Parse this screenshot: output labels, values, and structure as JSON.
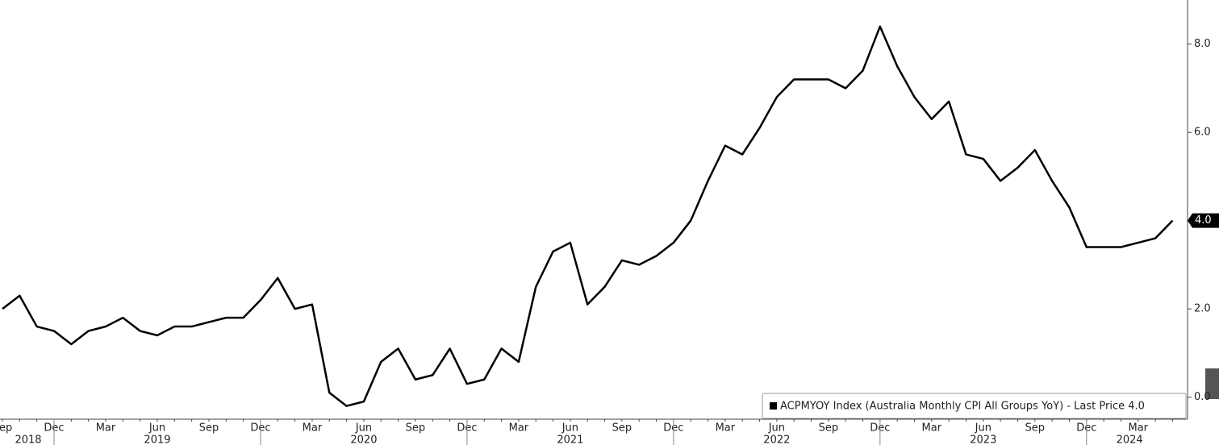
{
  "chart_data": {
    "type": "line",
    "categories": [
      "Sep",
      null,
      null,
      "Dec",
      null,
      null,
      "Mar",
      null,
      null,
      "Jun",
      null,
      null,
      "Sep",
      null,
      null,
      "Dec",
      null,
      null,
      "Mar",
      null,
      null,
      "Jun",
      null,
      null,
      "Sep",
      null,
      null,
      "Dec",
      null,
      null,
      "Mar",
      null,
      null,
      "Jun",
      null,
      null,
      "Sep",
      null,
      null,
      "Dec",
      null,
      null,
      "Mar",
      null,
      null,
      "Jun",
      null,
      null,
      "Sep",
      null,
      null,
      "Dec",
      null,
      null,
      "Mar",
      null,
      null,
      "Jun",
      null,
      null,
      "Sep",
      null,
      null,
      "Dec",
      null,
      null,
      "Mar",
      null,
      null
    ],
    "years": [
      "2018",
      "2019",
      "2020",
      "2021",
      "2022",
      "2023",
      "2024"
    ],
    "series": [
      {
        "name": "ACPMYOY Index (Australia Monthly CPI All Groups YoY) - Last Price 4.0",
        "color": "#000000",
        "values": [
          2.0,
          2.3,
          1.6,
          1.5,
          1.2,
          1.5,
          1.6,
          1.8,
          1.5,
          1.4,
          1.6,
          1.6,
          1.7,
          1.8,
          1.8,
          2.2,
          2.7,
          2.0,
          2.1,
          0.1,
          -0.2,
          -0.1,
          0.8,
          1.1,
          0.4,
          0.5,
          1.1,
          0.3,
          0.4,
          1.1,
          0.8,
          2.5,
          3.3,
          3.5,
          2.1,
          2.5,
          3.1,
          3.0,
          3.2,
          3.5,
          4.0,
          4.9,
          5.7,
          5.5,
          6.1,
          6.8,
          7.2,
          7.2,
          7.2,
          7.0,
          7.4,
          8.4,
          7.5,
          6.8,
          6.3,
          6.7,
          5.5,
          5.4,
          4.9,
          5.2,
          5.6,
          4.9,
          4.3,
          3.4,
          3.4,
          3.4,
          3.5,
          3.6,
          4.0
        ]
      }
    ],
    "last_price": {
      "value": 4.0,
      "label": "4.0"
    },
    "ylim": [
      -0.5,
      9.0
    ],
    "yticks": [
      {
        "value": 0,
        "label": "0.0"
      },
      {
        "value": 2,
        "label": "2.0"
      },
      {
        "value": 4,
        "label": "4.0"
      },
      {
        "value": 6,
        "label": "6.0"
      },
      {
        "value": 8,
        "label": "8.0"
      }
    ]
  }
}
